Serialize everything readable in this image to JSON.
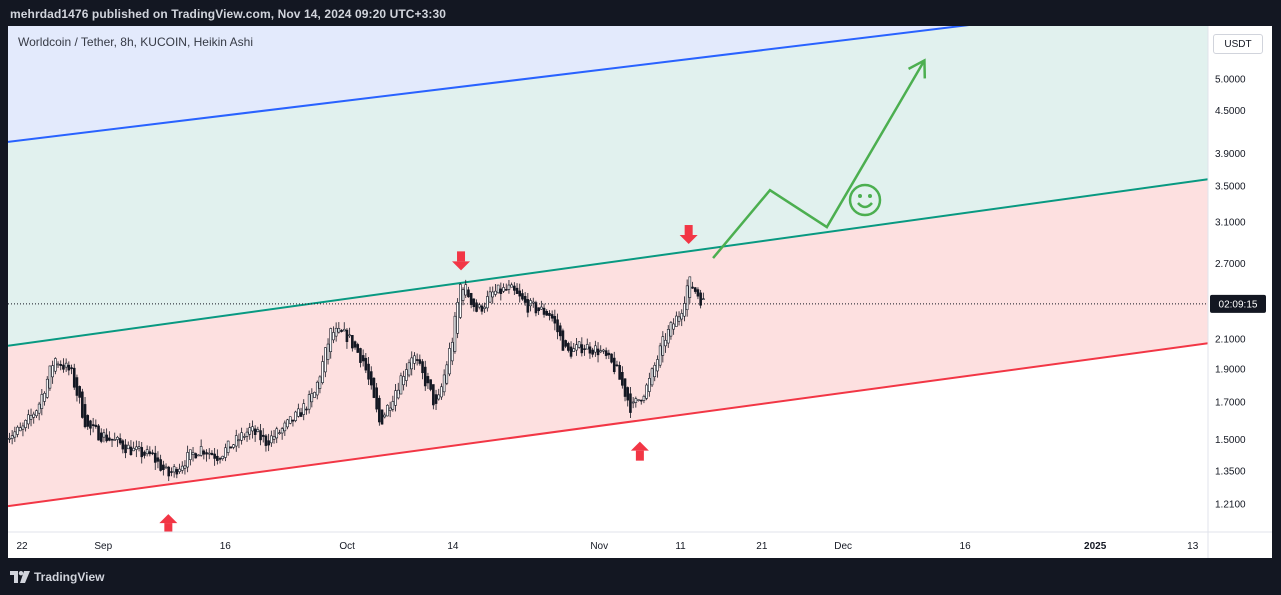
{
  "header": {
    "publisher_line": "mehrdad1476 published on TradingView.com, Nov 14, 2024 09:20 UTC+3:30"
  },
  "footer": {
    "brand": "TradingView",
    "logo_icon": "tradingview-logo-icon"
  },
  "chart_data": {
    "type": "candlestick",
    "title": "Worldcoin / Tether, 8h, KUCOIN, Heikin Ashi",
    "currency": "USDT",
    "countdown": "02:09:15",
    "y_scale": "log",
    "ylim": [
      1.16,
      5.7
    ],
    "y_ticks": [
      "5.0000",
      "4.5000",
      "3.9000",
      "3.5000",
      "3.1000",
      "2.7000",
      "2.1000",
      "1.9000",
      "1.7000",
      "1.5000",
      "1.3500",
      "1.2100"
    ],
    "x_ticks": [
      {
        "label": "22",
        "date": "2024-08-22"
      },
      {
        "label": "Sep",
        "date": "2024-09-01"
      },
      {
        "label": "16",
        "date": "2024-09-16"
      },
      {
        "label": "Oct",
        "date": "2024-10-01"
      },
      {
        "label": "14",
        "date": "2024-10-14"
      },
      {
        "label": "Nov",
        "date": "2024-11-01"
      },
      {
        "label": "11",
        "date": "2024-11-11"
      },
      {
        "label": "21",
        "date": "2024-11-21"
      },
      {
        "label": "Dec",
        "date": "2024-12-01"
      },
      {
        "label": "16",
        "date": "2024-12-16"
      },
      {
        "label": "2025",
        "date": "2025-01-01",
        "bold": true
      },
      {
        "label": "13",
        "date": "2025-01-13"
      }
    ],
    "price_path": [
      [
        "2024-08-20",
        1.52
      ],
      [
        "2024-08-22",
        1.55
      ],
      [
        "2024-08-24",
        1.68
      ],
      [
        "2024-08-26",
        1.97
      ],
      [
        "2024-08-28",
        1.88
      ],
      [
        "2024-08-30",
        1.56
      ],
      [
        "2024-09-01",
        1.52
      ],
      [
        "2024-09-03",
        1.48
      ],
      [
        "2024-09-05",
        1.44
      ],
      [
        "2024-09-07",
        1.42
      ],
      [
        "2024-09-09",
        1.33
      ],
      [
        "2024-09-11",
        1.4
      ],
      [
        "2024-09-13",
        1.46
      ],
      [
        "2024-09-15",
        1.42
      ],
      [
        "2024-09-17",
        1.48
      ],
      [
        "2024-09-19",
        1.55
      ],
      [
        "2024-09-21",
        1.49
      ],
      [
        "2024-09-23",
        1.55
      ],
      [
        "2024-09-25",
        1.63
      ],
      [
        "2024-09-27",
        1.75
      ],
      [
        "2024-09-29",
        2.15
      ],
      [
        "2024-10-01",
        2.12
      ],
      [
        "2024-10-03",
        1.95
      ],
      [
        "2024-10-05",
        1.58
      ],
      [
        "2024-10-07",
        1.78
      ],
      [
        "2024-10-09",
        2.0
      ],
      [
        "2024-10-11",
        1.78
      ],
      [
        "2024-10-12",
        1.66
      ],
      [
        "2024-10-14",
        2.12
      ],
      [
        "2024-10-15",
        2.55
      ],
      [
        "2024-10-17",
        2.3
      ],
      [
        "2024-10-19",
        2.45
      ],
      [
        "2024-10-21",
        2.48
      ],
      [
        "2024-10-23",
        2.35
      ],
      [
        "2024-10-26",
        2.28
      ],
      [
        "2024-10-28",
        2.0
      ],
      [
        "2024-10-30",
        2.05
      ],
      [
        "2024-11-01",
        2.02
      ],
      [
        "2024-11-03",
        1.9
      ],
      [
        "2024-11-05",
        1.66
      ],
      [
        "2024-11-07",
        1.8
      ],
      [
        "2024-11-09",
        2.1
      ],
      [
        "2024-11-11",
        2.3
      ],
      [
        "2024-11-12",
        2.55
      ],
      [
        "2024-11-13",
        2.45
      ],
      [
        "2024-11-14",
        2.35
      ]
    ],
    "last_price": 2.36,
    "channel_lines": [
      {
        "name": "upper",
        "color": "#2962ff",
        "points": [
          [
            "2024-08-20",
            4.05
          ],
          [
            "2025-01-15",
            6.6
          ]
        ]
      },
      {
        "name": "middle",
        "color": "#089981",
        "points": [
          [
            "2024-08-20",
            2.05
          ],
          [
            "2025-01-15",
            3.58
          ]
        ]
      },
      {
        "name": "lower",
        "color": "#f23645",
        "points": [
          [
            "2024-08-20",
            1.2
          ],
          [
            "2025-01-15",
            2.07
          ]
        ]
      }
    ],
    "zones": [
      {
        "between": [
          "upper",
          "top"
        ],
        "color": "#e3eafc"
      },
      {
        "between": [
          "middle",
          "upper"
        ],
        "color": "#e1f1ee"
      },
      {
        "between": [
          "lower",
          "middle"
        ],
        "color": "#fde0e0"
      }
    ],
    "markers": [
      {
        "type": "arrow-down",
        "date": "2024-10-15",
        "price": 2.72,
        "color": "#f23645"
      },
      {
        "type": "arrow-down",
        "date": "2024-11-12",
        "price": 2.97,
        "color": "#f23645"
      },
      {
        "type": "arrow-up",
        "date": "2024-09-09",
        "price": 1.17,
        "color": "#f23645"
      },
      {
        "type": "arrow-up",
        "date": "2024-11-06",
        "price": 1.49,
        "color": "#f23645"
      }
    ],
    "projection": {
      "color": "#4caf50",
      "points": [
        [
          "2024-11-15",
          2.75
        ],
        [
          "2024-11-22",
          3.45
        ],
        [
          "2024-11-29",
          3.05
        ],
        [
          "2024-12-11",
          5.32
        ]
      ]
    },
    "annotation_icon": "smiley-face-icon"
  }
}
